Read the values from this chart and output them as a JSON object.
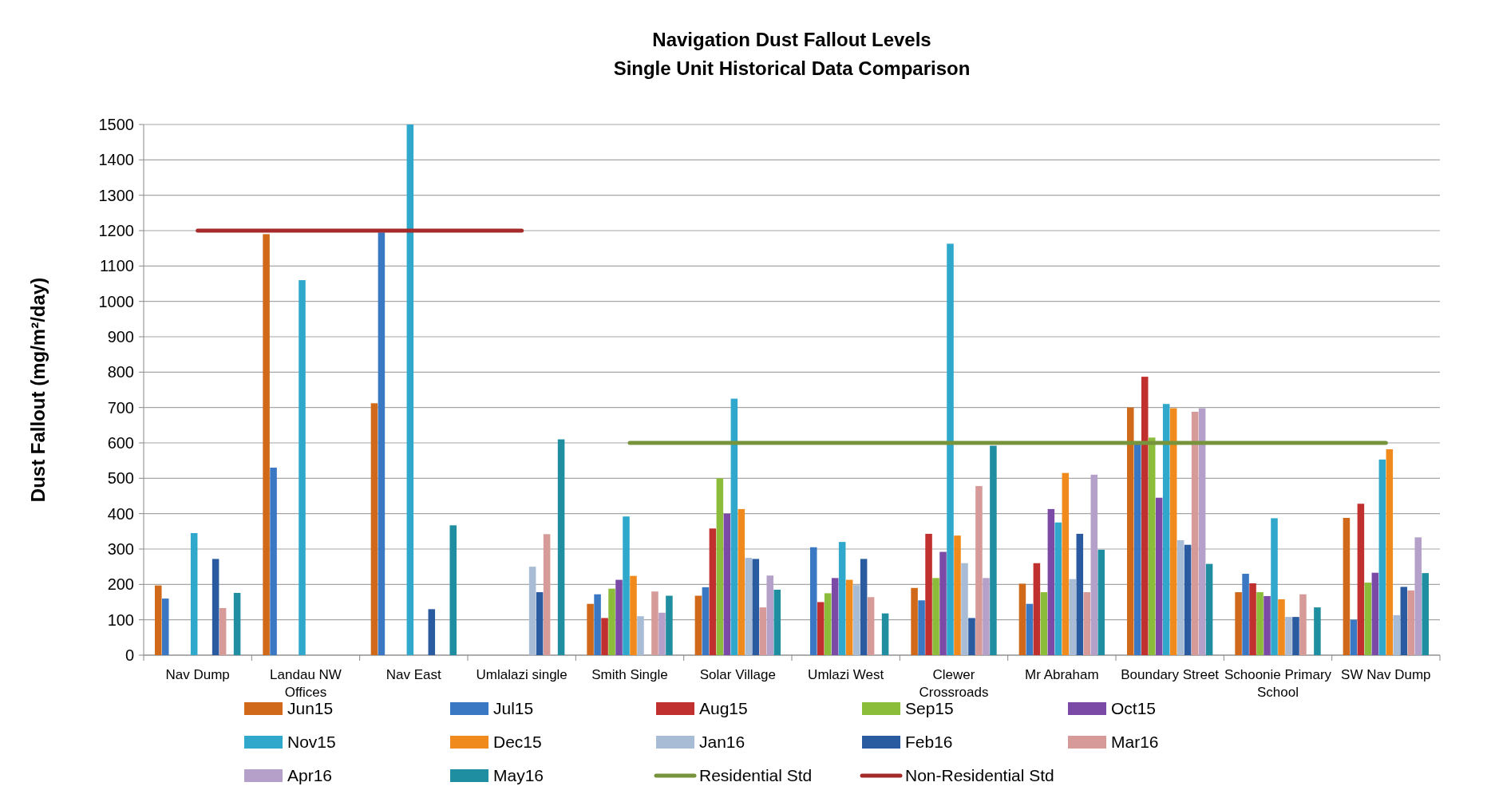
{
  "chart_data": {
    "type": "bar",
    "title": "Navigation Dust Fallout  Levels",
    "subtitle": "Single Unit Historical Data Comparison",
    "ylabel": "Dust Fallout  (mg/m²/day)",
    "categories": [
      "Nav Dump",
      "Landau NW Offices",
      "Nav East",
      "Umlalazi single",
      "Smith Single",
      "Solar Village",
      "Umlazi West",
      "Clewer Crossroads",
      "Mr Abraham",
      "Boundary Street",
      "Schoonie Primary School",
      "SW Nav Dump"
    ],
    "ylim": [
      0,
      1500
    ],
    "yticks": [
      0,
      100,
      200,
      300,
      400,
      500,
      600,
      700,
      800,
      900,
      1000,
      1100,
      1200,
      1300,
      1400,
      1500
    ],
    "grid": "y",
    "legend": "bottom",
    "series": [
      {
        "name": "Jun15",
        "color": "#d06a1a",
        "values": [
          197,
          1190,
          712,
          null,
          145,
          168,
          null,
          190,
          202,
          700,
          178,
          388
        ]
      },
      {
        "name": "Jul15",
        "color": "#3a78c4",
        "values": [
          160,
          530,
          1195,
          null,
          172,
          192,
          305,
          155,
          145,
          600,
          230,
          100
        ]
      },
      {
        "name": "Aug15",
        "color": "#c0302e",
        "values": [
          null,
          null,
          null,
          null,
          105,
          358,
          150,
          343,
          260,
          787,
          203,
          428
        ]
      },
      {
        "name": "Sep15",
        "color": "#8cbd3a",
        "values": [
          null,
          null,
          null,
          null,
          188,
          500,
          175,
          218,
          178,
          615,
          178,
          205
        ]
      },
      {
        "name": "Oct15",
        "color": "#7b4aa6",
        "values": [
          null,
          null,
          null,
          null,
          213,
          400,
          218,
          292,
          413,
          445,
          167,
          233
        ]
      },
      {
        "name": "Nov15",
        "color": "#2fa8cc",
        "values": [
          345,
          1060,
          1500,
          null,
          392,
          725,
          320,
          1163,
          375,
          710,
          387,
          553
        ]
      },
      {
        "name": "Dec15",
        "color": "#f08a1c",
        "values": [
          null,
          null,
          null,
          null,
          224,
          413,
          213,
          338,
          515,
          698,
          158,
          582
        ]
      },
      {
        "name": "Jan16",
        "color": "#a9bcd6",
        "values": [
          null,
          null,
          null,
          250,
          110,
          275,
          198,
          260,
          215,
          325,
          108,
          113
        ]
      },
      {
        "name": "Feb16",
        "color": "#2a5aa0",
        "values": [
          272,
          null,
          130,
          178,
          null,
          272,
          272,
          105,
          343,
          312,
          108,
          193
        ]
      },
      {
        "name": "Mar16",
        "color": "#d69a98",
        "values": [
          133,
          null,
          null,
          342,
          180,
          135,
          164,
          478,
          178,
          688,
          172,
          183
        ]
      },
      {
        "name": "Apr16",
        "color": "#b4a0c8",
        "values": [
          null,
          null,
          null,
          null,
          120,
          225,
          null,
          218,
          510,
          698,
          null,
          333
        ]
      },
      {
        "name": "May16",
        "color": "#1f8ea0",
        "values": [
          176,
          null,
          367,
          610,
          168,
          185,
          118,
          592,
          298,
          258,
          135,
          232
        ]
      },
      {
        "name": "Residential Std",
        "color": "#77933c",
        "type": "line",
        "values": [
          null,
          null,
          null,
          null,
          600,
          600,
          600,
          600,
          600,
          600,
          600,
          600
        ]
      },
      {
        "name": "Non-Residential Std",
        "color": "#a52a2a",
        "type": "line",
        "values": [
          1200,
          1200,
          1200,
          1200,
          null,
          null,
          null,
          null,
          null,
          null,
          null,
          null
        ]
      }
    ]
  }
}
